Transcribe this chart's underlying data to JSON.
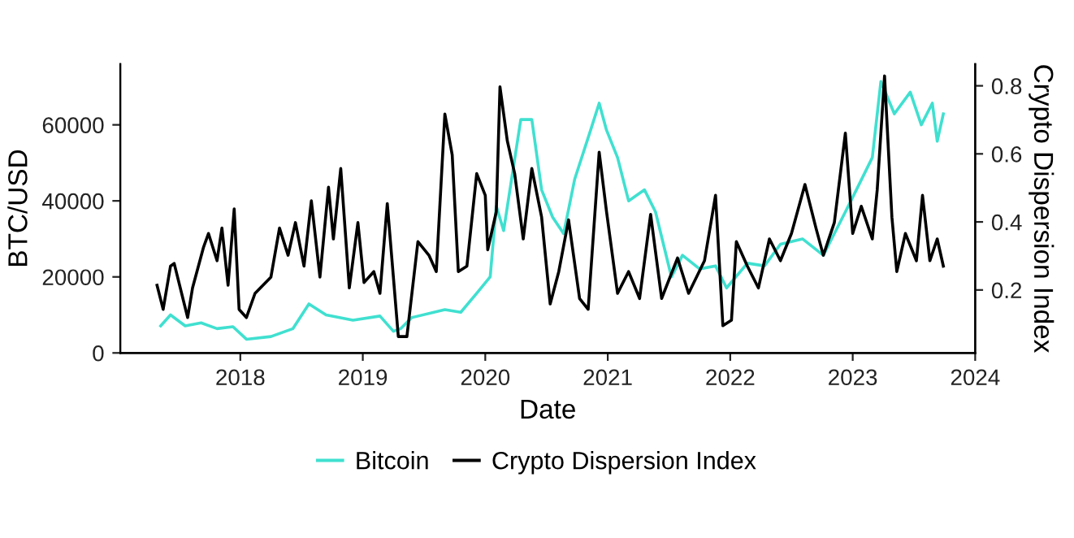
{
  "chart_data": {
    "type": "line",
    "xlabel": "Date",
    "ylabel": "BTC/USD",
    "y2label": "Crypto Dispersion Index",
    "xlim": [
      2017.02,
      2024.0
    ],
    "xticks": [
      2018,
      2019,
      2020,
      2021,
      2022,
      2023,
      2024
    ],
    "ylim": [
      0,
      76000
    ],
    "yticks": [
      0,
      20000,
      40000,
      60000
    ],
    "y2lim": [
      0.015,
      0.864
    ],
    "y2ticks": [
      0.2,
      0.4,
      0.6,
      0.8
    ],
    "grid": false,
    "legend": "bottom",
    "line_style": "solid",
    "marker": "none",
    "series": [
      {
        "name": "Bitcoin",
        "color": "#40e0d0",
        "x": [
          2017.35,
          2017.43,
          2017.55,
          2017.68,
          2017.81,
          2017.94,
          2018.05,
          2018.25,
          2018.43,
          2018.56,
          2018.7,
          2018.92,
          2019.14,
          2019.25,
          2019.31,
          2019.4,
          2019.67,
          2019.8,
          2019.93,
          2020.04,
          2020.09,
          2020.15,
          2020.29,
          2020.38,
          2020.46,
          2020.55,
          2020.64,
          2020.73,
          2020.86,
          2020.93,
          2020.99,
          2021.08,
          2021.17,
          2021.3,
          2021.39,
          2021.52,
          2021.61,
          2021.75,
          2021.88,
          2021.97,
          2022.14,
          2022.28,
          2022.41,
          2022.59,
          2022.76,
          2022.94,
          2023.03,
          2023.16,
          2023.23,
          2023.34,
          2023.47,
          2023.56,
          2023.65,
          2023.69,
          2023.74
        ],
        "values": [
          7100,
          10000,
          7100,
          7900,
          6400,
          6900,
          3600,
          4300,
          6400,
          12900,
          10000,
          8600,
          9700,
          5700,
          6400,
          9300,
          11400,
          10700,
          15700,
          20000,
          38600,
          32200,
          61400,
          61400,
          42900,
          35700,
          31400,
          45700,
          58600,
          65700,
          58600,
          51400,
          40000,
          42900,
          37100,
          20000,
          25700,
          22100,
          22900,
          17100,
          23600,
          22900,
          28600,
          30000,
          25700,
          37100,
          42900,
          51400,
          71400,
          62900,
          68600,
          60000,
          65700,
          55700,
          62900
        ]
      },
      {
        "name": "Crypto Dispersion Index",
        "color": "#000000",
        "axis": "y2",
        "x": [
          2017.32,
          2017.37,
          2017.43,
          2017.46,
          2017.57,
          2017.61,
          2017.7,
          2017.74,
          2017.81,
          2017.85,
          2017.9,
          2017.95,
          2017.99,
          2018.05,
          2018.12,
          2018.25,
          2018.32,
          2018.39,
          2018.45,
          2018.52,
          2018.58,
          2018.65,
          2018.72,
          2018.76,
          2018.82,
          2018.89,
          2018.96,
          2019.01,
          2019.09,
          2019.14,
          2019.2,
          2019.29,
          2019.36,
          2019.45,
          2019.54,
          2019.6,
          2019.67,
          2019.73,
          2019.78,
          2019.85,
          2019.93,
          2020.0,
          2020.02,
          2020.09,
          2020.12,
          2020.18,
          2020.24,
          2020.31,
          2020.38,
          2020.46,
          2020.53,
          2020.6,
          2020.68,
          2020.77,
          2020.84,
          2020.93,
          2020.99,
          2021.08,
          2021.17,
          2021.26,
          2021.35,
          2021.44,
          2021.57,
          2021.66,
          2021.79,
          2021.88,
          2021.94,
          2022.01,
          2022.05,
          2022.14,
          2022.23,
          2022.32,
          2022.41,
          2022.5,
          2022.61,
          2022.7,
          2022.76,
          2022.85,
          2022.94,
          2023.0,
          2023.07,
          2023.16,
          2023.2,
          2023.26,
          2023.32,
          2023.36,
          2023.43,
          2023.52,
          2023.57,
          2023.63,
          2023.69,
          2023.74
        ],
        "values": [
          0.214,
          0.143,
          0.27,
          0.278,
          0.119,
          0.206,
          0.326,
          0.366,
          0.286,
          0.382,
          0.214,
          0.438,
          0.143,
          0.119,
          0.19,
          0.238,
          0.382,
          0.302,
          0.398,
          0.27,
          0.462,
          0.238,
          0.502,
          0.35,
          0.557,
          0.206,
          0.398,
          0.222,
          0.254,
          0.19,
          0.454,
          0.063,
          0.063,
          0.342,
          0.302,
          0.254,
          0.717,
          0.597,
          0.254,
          0.27,
          0.542,
          0.478,
          0.318,
          0.43,
          0.797,
          0.638,
          0.542,
          0.35,
          0.557,
          0.414,
          0.159,
          0.254,
          0.406,
          0.175,
          0.143,
          0.605,
          0.43,
          0.19,
          0.254,
          0.175,
          0.422,
          0.175,
          0.294,
          0.19,
          0.286,
          0.478,
          0.095,
          0.111,
          0.342,
          0.27,
          0.206,
          0.35,
          0.286,
          0.366,
          0.51,
          0.382,
          0.302,
          0.398,
          0.661,
          0.366,
          0.446,
          0.35,
          0.494,
          0.829,
          0.414,
          0.254,
          0.366,
          0.286,
          0.478,
          0.286,
          0.35,
          0.27
        ]
      }
    ]
  }
}
